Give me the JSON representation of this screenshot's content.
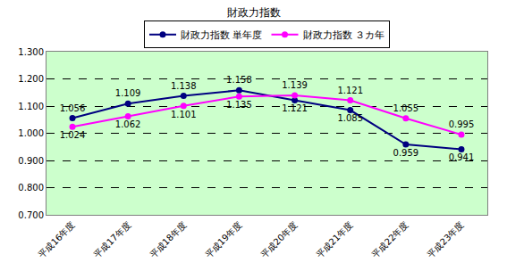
{
  "chart_data": {
    "type": "line",
    "title": "財政力指数",
    "categories": [
      "平成16年度",
      "平成17年度",
      "平成18年度",
      "平成19年度",
      "平成20年度",
      "平成21年度",
      "平成22年度",
      "平成23年度"
    ],
    "series": [
      {
        "name": "財政力指数 単年度",
        "color": "#000080",
        "marker": "circle",
        "values": [
          1.056,
          1.109,
          1.138,
          1.158,
          1.121,
          1.085,
          0.959,
          0.941
        ]
      },
      {
        "name": "財政力指数 ３カ年",
        "color": "#ff00ff",
        "marker": "circle",
        "values": [
          1.024,
          1.062,
          1.101,
          1.135,
          1.139,
          1.121,
          1.055,
          0.995
        ]
      }
    ],
    "ylim": [
      0.7,
      1.3
    ],
    "yticks": [
      {
        "value": 0.7,
        "label": "0.700"
      },
      {
        "value": 0.8,
        "label": "0.800"
      },
      {
        "value": 0.9,
        "label": "0.900"
      },
      {
        "value": 1.0,
        "label": "1.000"
      },
      {
        "value": 1.1,
        "label": "1.100"
      },
      {
        "value": 1.2,
        "label": "1.200"
      },
      {
        "value": 1.3,
        "label": "1.300"
      }
    ],
    "grid": true,
    "legend": "top",
    "data_labels": true
  }
}
